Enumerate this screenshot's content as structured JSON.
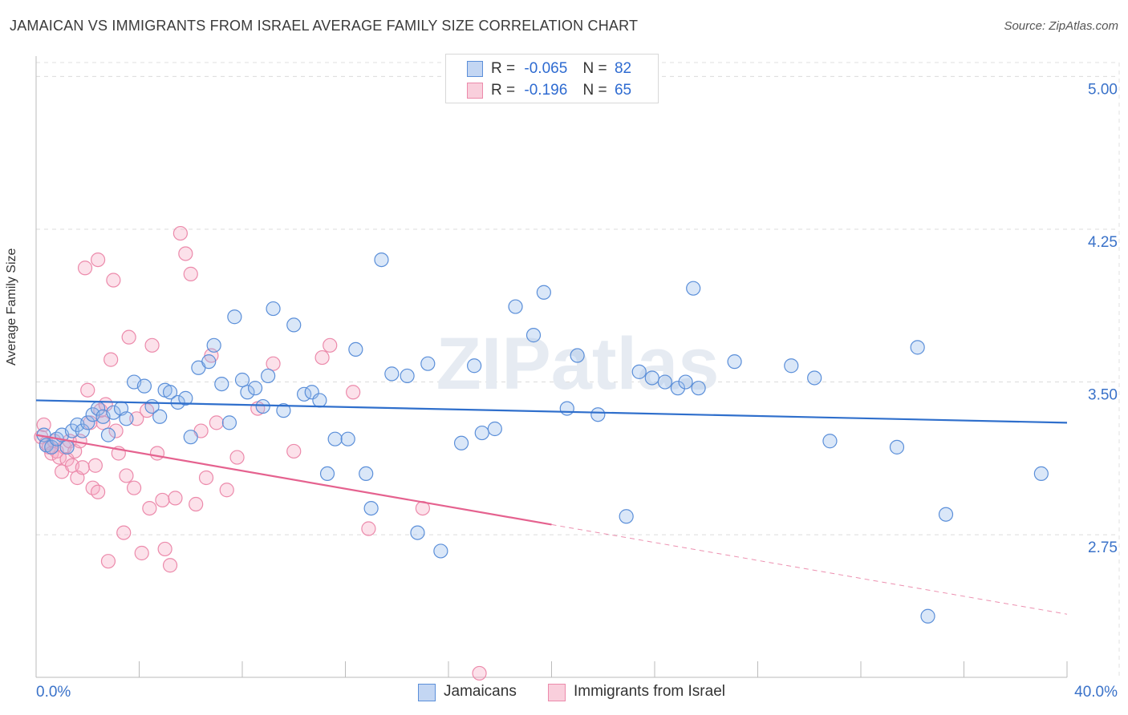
{
  "title": "JAMAICAN VS IMMIGRANTS FROM ISRAEL AVERAGE FAMILY SIZE CORRELATION CHART",
  "source": "Source: ZipAtlas.com",
  "watermark": "ZIPatlas",
  "legend": {
    "rows": [
      {
        "r_label": "R =",
        "r_value": "-0.065",
        "n_label": "N =",
        "n_value": "82"
      },
      {
        "r_label": "R =",
        "r_value": "-0.196",
        "n_label": "N =",
        "n_value": "65"
      }
    ]
  },
  "chart_data": {
    "type": "scatter",
    "title": "JAMAICAN VS IMMIGRANTS FROM ISRAEL AVERAGE FAMILY SIZE CORRELATION CHART",
    "xlabel": "",
    "ylabel": "Average Family Size",
    "xlim": [
      0,
      40
    ],
    "ylim": [
      2.05,
      5.1
    ],
    "x_tick_labels": [
      "0.0%",
      "40.0%"
    ],
    "y_ticks": [
      2.75,
      3.5,
      4.25,
      5.0
    ],
    "y_tick_labels": [
      "2.75",
      "3.50",
      "4.25",
      "5.00"
    ],
    "grid": true,
    "legend_placement": "top-center",
    "colors": {
      "jamaicans": "#5b8fd9",
      "israel": "#ec8aab",
      "jamaicans_line": "#2f6fcc",
      "israel_line": "#e5628f",
      "tick_label": "#3a72c9"
    },
    "series": [
      {
        "name": "Jamaicans",
        "trend": {
          "x": [
            0,
            40
          ],
          "y": [
            3.41,
            3.3
          ]
        },
        "points": [
          [
            0.3,
            3.24
          ],
          [
            0.4,
            3.19
          ],
          [
            0.6,
            3.18
          ],
          [
            0.8,
            3.22
          ],
          [
            1.0,
            3.24
          ],
          [
            1.2,
            3.18
          ],
          [
            1.4,
            3.26
          ],
          [
            1.6,
            3.29
          ],
          [
            1.8,
            3.26
          ],
          [
            2.0,
            3.3
          ],
          [
            2.2,
            3.34
          ],
          [
            2.4,
            3.37
          ],
          [
            2.6,
            3.33
          ],
          [
            2.8,
            3.24
          ],
          [
            3.0,
            3.35
          ],
          [
            3.3,
            3.37
          ],
          [
            3.5,
            3.32
          ],
          [
            3.8,
            3.5
          ],
          [
            4.2,
            3.48
          ],
          [
            4.5,
            3.38
          ],
          [
            4.8,
            3.33
          ],
          [
            5.0,
            3.46
          ],
          [
            5.2,
            3.45
          ],
          [
            5.5,
            3.4
          ],
          [
            5.8,
            3.42
          ],
          [
            6.0,
            3.23
          ],
          [
            6.3,
            3.57
          ],
          [
            6.7,
            3.6
          ],
          [
            6.9,
            3.68
          ],
          [
            7.2,
            3.49
          ],
          [
            7.5,
            3.3
          ],
          [
            7.7,
            3.82
          ],
          [
            8.0,
            3.51
          ],
          [
            8.2,
            3.45
          ],
          [
            8.5,
            3.47
          ],
          [
            8.8,
            3.38
          ],
          [
            9.0,
            3.53
          ],
          [
            9.2,
            3.86
          ],
          [
            9.6,
            3.36
          ],
          [
            10.0,
            3.78
          ],
          [
            10.4,
            3.44
          ],
          [
            10.7,
            3.45
          ],
          [
            11.0,
            3.41
          ],
          [
            11.3,
            3.05
          ],
          [
            11.6,
            3.22
          ],
          [
            12.1,
            3.22
          ],
          [
            12.4,
            3.66
          ],
          [
            12.8,
            3.05
          ],
          [
            13.0,
            2.88
          ],
          [
            13.4,
            4.1
          ],
          [
            13.8,
            3.54
          ],
          [
            14.4,
            3.53
          ],
          [
            14.8,
            2.76
          ],
          [
            15.2,
            3.59
          ],
          [
            15.7,
            2.67
          ],
          [
            16.5,
            3.2
          ],
          [
            17.0,
            3.58
          ],
          [
            17.3,
            3.25
          ],
          [
            18.6,
            3.87
          ],
          [
            19.3,
            3.73
          ],
          [
            19.7,
            3.94
          ],
          [
            20.6,
            3.37
          ],
          [
            21.0,
            3.63
          ],
          [
            21.8,
            3.34
          ],
          [
            22.9,
            2.84
          ],
          [
            23.4,
            3.55
          ],
          [
            23.9,
            3.52
          ],
          [
            24.4,
            3.5
          ],
          [
            24.9,
            3.47
          ],
          [
            25.2,
            3.5
          ],
          [
            25.5,
            3.96
          ],
          [
            27.1,
            3.6
          ],
          [
            29.3,
            3.58
          ],
          [
            30.2,
            3.52
          ],
          [
            30.8,
            3.21
          ],
          [
            33.4,
            3.18
          ],
          [
            34.2,
            3.67
          ],
          [
            34.6,
            2.35
          ],
          [
            35.3,
            2.85
          ],
          [
            39.0,
            3.05
          ],
          [
            25.7,
            3.47
          ],
          [
            17.8,
            3.27
          ]
        ]
      },
      {
        "name": "Immigrants from Israel",
        "trend": {
          "x": [
            0,
            20
          ],
          "y": [
            3.24,
            2.8
          ]
        },
        "trend_extension": {
          "x": [
            20,
            40
          ],
          "y": [
            2.8,
            2.36
          ]
        },
        "points": [
          [
            0.2,
            3.23
          ],
          [
            0.3,
            3.29
          ],
          [
            0.4,
            3.2
          ],
          [
            0.5,
            3.18
          ],
          [
            0.6,
            3.15
          ],
          [
            0.7,
            3.21
          ],
          [
            0.8,
            3.16
          ],
          [
            0.9,
            3.13
          ],
          [
            1.0,
            3.06
          ],
          [
            1.1,
            3.18
          ],
          [
            1.2,
            3.12
          ],
          [
            1.3,
            3.21
          ],
          [
            1.4,
            3.09
          ],
          [
            1.5,
            3.16
          ],
          [
            1.6,
            3.03
          ],
          [
            1.7,
            3.21
          ],
          [
            1.8,
            3.08
          ],
          [
            2.0,
            3.46
          ],
          [
            2.1,
            3.3
          ],
          [
            2.2,
            2.98
          ],
          [
            2.3,
            3.09
          ],
          [
            2.4,
            2.96
          ],
          [
            2.5,
            3.36
          ],
          [
            2.6,
            3.3
          ],
          [
            2.7,
            3.39
          ],
          [
            2.8,
            2.62
          ],
          [
            2.9,
            3.61
          ],
          [
            3.1,
            3.26
          ],
          [
            3.2,
            3.15
          ],
          [
            3.4,
            2.76
          ],
          [
            3.6,
            3.72
          ],
          [
            3.8,
            2.98
          ],
          [
            3.9,
            3.32
          ],
          [
            4.1,
            2.66
          ],
          [
            4.3,
            3.36
          ],
          [
            4.4,
            2.88
          ],
          [
            4.5,
            3.68
          ],
          [
            4.7,
            3.15
          ],
          [
            4.9,
            2.92
          ],
          [
            5.0,
            2.68
          ],
          [
            5.2,
            2.6
          ],
          [
            5.4,
            2.93
          ],
          [
            5.6,
            4.23
          ],
          [
            5.8,
            4.13
          ],
          [
            6.0,
            4.03
          ],
          [
            6.2,
            2.9
          ],
          [
            6.4,
            3.26
          ],
          [
            6.6,
            3.03
          ],
          [
            6.8,
            3.63
          ],
          [
            7.0,
            3.3
          ],
          [
            7.4,
            2.97
          ],
          [
            7.8,
            3.13
          ],
          [
            8.6,
            3.37
          ],
          [
            9.2,
            3.59
          ],
          [
            10.0,
            3.16
          ],
          [
            11.1,
            3.62
          ],
          [
            11.4,
            3.68
          ],
          [
            12.3,
            3.45
          ],
          [
            12.9,
            2.78
          ],
          [
            15.0,
            2.88
          ],
          [
            17.2,
            2.07
          ],
          [
            1.9,
            4.06
          ],
          [
            2.4,
            4.1
          ],
          [
            3.0,
            4.0
          ],
          [
            3.5,
            3.04
          ]
        ]
      }
    ]
  },
  "bottom_legend": {
    "items": [
      "Jamaicans",
      "Immigrants from Israel"
    ]
  }
}
